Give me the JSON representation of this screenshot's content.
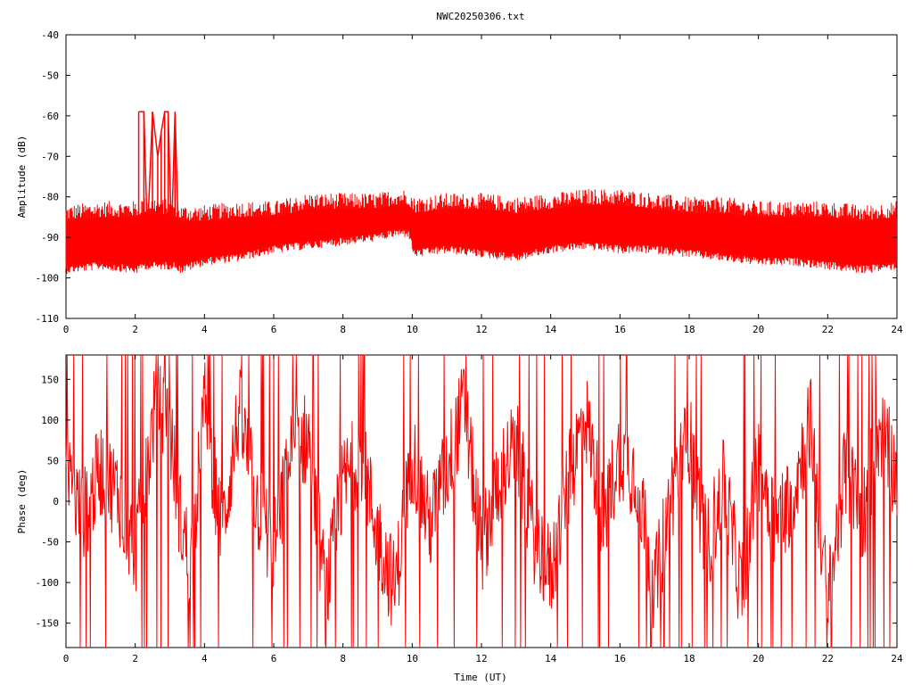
{
  "figure": {
    "title": "NWC20250306.txt"
  },
  "colors": {
    "series": "#ff0000",
    "axes": "#000000",
    "background": "#ffffff"
  },
  "chart_data": [
    {
      "type": "line",
      "title": "NWC20250306.txt",
      "xlabel": "",
      "ylabel": "Amplitude (dB)",
      "xlim": [
        0,
        24
      ],
      "ylim": [
        -110,
        -40
      ],
      "xticks": [
        "0",
        "2",
        "4",
        "6",
        "8",
        "10",
        "12",
        "14",
        "16",
        "18",
        "20",
        "22",
        "24"
      ],
      "yticks": [
        "-40",
        "-50",
        "-60",
        "-70",
        "-80",
        "-90",
        "-100",
        "-110"
      ],
      "grid": false,
      "legend": "none",
      "series": [
        {
          "color": "#ff0000",
          "envelope": {
            "x": [
              0,
              1,
              2,
              2.1,
              2.2,
              2.6,
              3.2,
              3.3,
              4,
              5,
              6,
              7,
              8,
              9,
              9.5,
              9.9,
              10.05,
              11,
              12,
              13,
              14,
              15,
              16,
              17,
              18,
              19,
              20,
              21,
              22,
              23,
              24
            ],
            "low": [
              -97,
              -96,
              -97,
              -97,
              -96,
              -96,
              -96,
              -97,
              -95,
              -94,
              -92,
              -91,
              -90,
              -89,
              -88,
              -88,
              -93,
              -92,
              -93,
              -94,
              -92,
              -91,
              -92,
              -92,
              -93,
              -94,
              -95,
              -95,
              -96,
              -97,
              -96
            ],
            "high": [
              -86,
              -85,
              -85,
              -85,
              -84,
              -84,
              -85,
              -86,
              -86,
              -85,
              -85,
              -83,
              -83,
              -83,
              -82,
              -82,
              -84,
              -83,
              -83,
              -84,
              -83,
              -82,
              -82,
              -83,
              -84,
              -84,
              -85,
              -85,
              -85,
              -86,
              -85
            ]
          },
          "spikes": {
            "x": [
              2.1,
              2.25,
              2.35,
              2.5,
              2.65,
              2.75,
              2.85,
              2.95,
              3.05,
              3.15,
              3.25
            ],
            "y": [
              -59,
              -59,
              -90,
              -59,
              -70,
              -64,
              -59,
              -59,
              -90,
              -59,
              -90
            ]
          }
        }
      ]
    },
    {
      "type": "line",
      "title": "",
      "xlabel": "Time (UT)",
      "ylabel": "Phase (deg)",
      "xlim": [
        0,
        24
      ],
      "ylim": [
        -180,
        180
      ],
      "xticks": [
        "0",
        "2",
        "4",
        "6",
        "8",
        "10",
        "12",
        "14",
        "16",
        "18",
        "20",
        "22",
        "24"
      ],
      "yticks": [
        "150",
        "100",
        "50",
        "0",
        "-50",
        "-100",
        "-150"
      ],
      "grid": false,
      "legend": "none",
      "series": [
        {
          "color": "#ff0000",
          "points": {
            "x": [
              0,
              0.5,
              1,
              1.5,
              2,
              2.3,
              2.6,
              3,
              3.3,
              3.6,
              4,
              4.5,
              5,
              5.5,
              6,
              6.5,
              7,
              7.5,
              8,
              8.5,
              9,
              9.5,
              10,
              10.5,
              11,
              11.5,
              12,
              12.5,
              13,
              13.5,
              14,
              14.5,
              15,
              15.5,
              16,
              16.5,
              17,
              17.5,
              18,
              18.5,
              19,
              19.5,
              20,
              20.5,
              21,
              21.5,
              22,
              22.5,
              23,
              23.5,
              24
            ],
            "y": [
              30,
              -20,
              40,
              10,
              -60,
              20,
              130,
              90,
              -20,
              -80,
              120,
              -40,
              110,
              0,
              -60,
              60,
              80,
              -120,
              20,
              60,
              -40,
              -110,
              60,
              -30,
              40,
              120,
              -60,
              30,
              70,
              -40,
              -90,
              20,
              110,
              -20,
              60,
              30,
              -110,
              10,
              80,
              -60,
              20,
              -110,
              50,
              -30,
              10,
              100,
              -130,
              40,
              -20,
              90,
              30
            ]
          },
          "wraps": 90
        }
      ]
    }
  ]
}
